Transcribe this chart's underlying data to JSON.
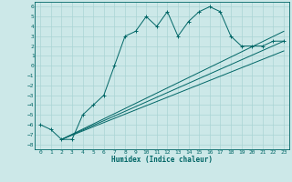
{
  "xlabel": "Humidex (Indice chaleur)",
  "bg_color": "#cce8e8",
  "line_color": "#006666",
  "grid_color": "#aad4d4",
  "xlim": [
    -0.5,
    23.5
  ],
  "ylim": [
    -8.5,
    6.5
  ],
  "xticks": [
    0,
    1,
    2,
    3,
    4,
    5,
    6,
    7,
    8,
    9,
    10,
    11,
    12,
    13,
    14,
    15,
    16,
    17,
    18,
    19,
    20,
    21,
    22,
    23
  ],
  "yticks": [
    -8,
    -7,
    -6,
    -5,
    -4,
    -3,
    -2,
    -1,
    0,
    1,
    2,
    3,
    4,
    5,
    6
  ],
  "main_x": [
    0,
    1,
    2,
    3,
    4,
    5,
    6,
    7,
    8,
    9,
    10,
    11,
    12,
    13,
    14,
    15,
    16,
    17,
    18,
    19,
    20,
    21,
    22,
    23
  ],
  "main_y": [
    -6.0,
    -6.5,
    -7.5,
    -7.5,
    -5.0,
    -4.0,
    -3.0,
    0.0,
    3.0,
    3.5,
    5.0,
    4.0,
    5.5,
    3.0,
    4.5,
    5.5,
    6.0,
    5.5,
    3.0,
    2.0,
    2.0,
    2.0,
    2.5,
    2.5
  ],
  "line2_x": [
    2,
    23
  ],
  "line2_y": [
    -7.5,
    2.5
  ],
  "line3_x": [
    2,
    23
  ],
  "line3_y": [
    -7.5,
    1.5
  ],
  "line4_x": [
    2,
    23
  ],
  "line4_y": [
    -7.5,
    3.5
  ],
  "tick_fontsize": 4.5,
  "xlabel_fontsize": 5.5
}
